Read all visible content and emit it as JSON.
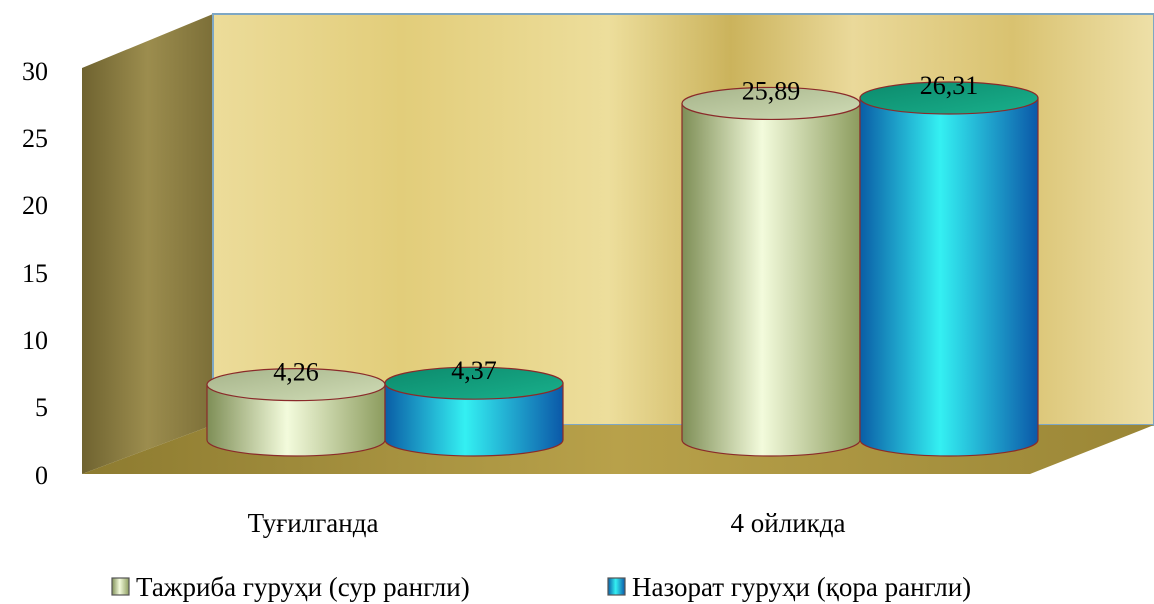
{
  "chart_data": {
    "type": "bar",
    "title": "",
    "xlabel": "",
    "ylabel": "",
    "categories": [
      "Туғилганда",
      "4 ойликда"
    ],
    "series": [
      {
        "name": "Тажриба гуруҳи (сур рангли)",
        "values": [
          4.26,
          25.89
        ],
        "labels": [
          "4,26",
          "25,89"
        ],
        "color": "#d9e8b4"
      },
      {
        "name": "Назорат гуруҳи (қора рангли)",
        "values": [
          4.37,
          26.31
        ],
        "labels": [
          "4,37",
          "26,31"
        ],
        "color": "#1fa9d8"
      }
    ],
    "ylim": [
      0,
      30
    ],
    "yticks": [
      0,
      5,
      10,
      15,
      20,
      25,
      30
    ],
    "grid": false,
    "legend": "bottom"
  },
  "colors": {
    "back_wall": "#e8d68e",
    "side_wall": "#8a7a3a",
    "floor": "#a8943c",
    "series1_top": "#b8c8a0",
    "series2_top": "#139a7a"
  }
}
